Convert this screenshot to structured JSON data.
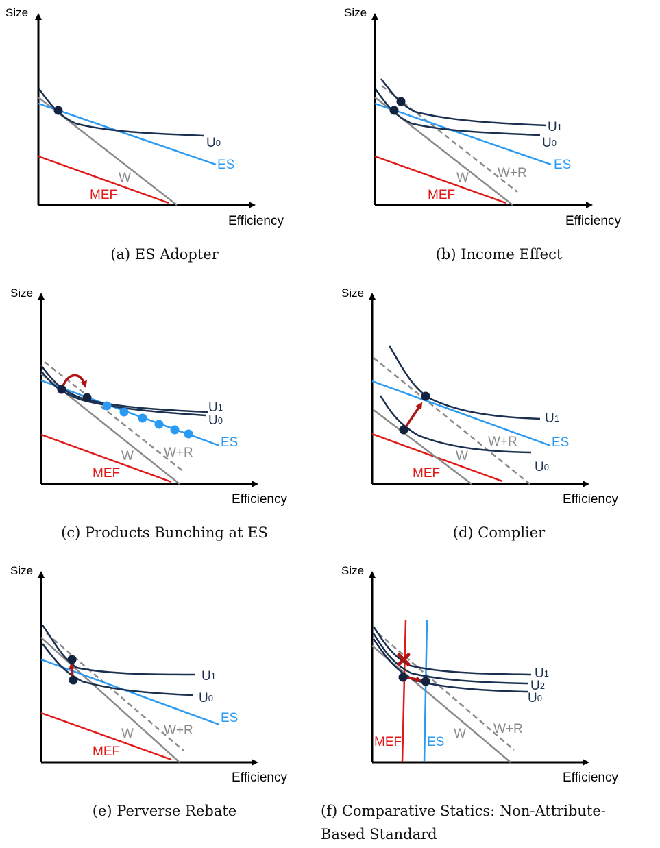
{
  "colors": {
    "axis": "#000000",
    "indifference": "#1b2f4e",
    "es": "#2b9af3",
    "budget": "#8a8a8a",
    "mef": "#e01818",
    "arrow": "#b01515",
    "bunch_dot": "#2b9af3"
  },
  "axis_labels": {
    "x": "Efficiency",
    "y": "Size"
  },
  "panels": [
    {
      "id": "a",
      "caption": "(a) ES Adopter",
      "labels": {
        "u0": "U",
        "u0sub": "0",
        "es": "ES",
        "w": "W",
        "mef": "MEF"
      }
    },
    {
      "id": "b",
      "caption": "(b) Income Effect",
      "labels": {
        "u1": "U",
        "u1sub": "1",
        "u0": "U",
        "u0sub": "0",
        "es": "ES",
        "w": "W",
        "wr": "W+R",
        "mef": "MEF"
      }
    },
    {
      "id": "c",
      "caption": "(c) Products Bunching at ES",
      "labels": {
        "u1": "U",
        "u1sub": "1",
        "u0": "U",
        "u0sub": "0",
        "es": "ES",
        "w": "W",
        "wr": "W+R",
        "mef": "MEF"
      }
    },
    {
      "id": "d",
      "caption": "(d) Complier",
      "labels": {
        "u1": "U",
        "u1sub": "1",
        "u0": "U",
        "u0sub": "0",
        "es": "ES",
        "w": "W",
        "wr": "W+R",
        "mef": "MEF"
      }
    },
    {
      "id": "e",
      "caption": "(e) Perverse Rebate",
      "labels": {
        "u1": "U",
        "u1sub": "1",
        "u0": "U",
        "u0sub": "0",
        "es": "ES",
        "w": "W",
        "wr": "W+R",
        "mef": "MEF"
      }
    },
    {
      "id": "f",
      "caption_line1": "(f) Comparative Statics: Non-Attribute-",
      "caption_line2": "Based Standard",
      "labels": {
        "u1": "U",
        "u1sub": "1",
        "u2": "U",
        "u2sub": "2",
        "u0": "U",
        "u0sub": "0",
        "es": "ES",
        "w": "W",
        "wr": "W+R",
        "mef": "MEF"
      }
    }
  ]
}
